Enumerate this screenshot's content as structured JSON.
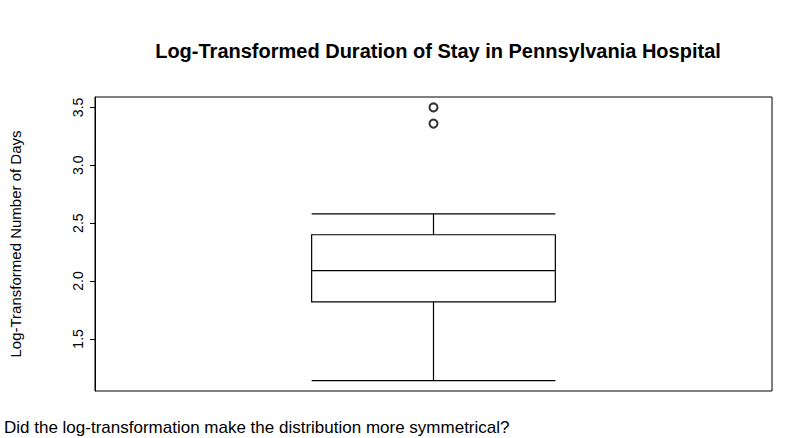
{
  "chart_data": {
    "type": "boxplot",
    "title": "Log-Transformed Duration of Stay in Pennsylvania Hospital",
    "ylabel": "Log-Transformed Number of Days",
    "caption": "Did the log-transformation make the distribution more symmetrical?",
    "boxes": [
      {
        "min": 1.14,
        "q1": 1.82,
        "median": 2.09,
        "q3": 2.4,
        "max": 2.58,
        "outliers": [
          3.36,
          3.5
        ]
      }
    ],
    "ylim": [
      1.05,
      3.59
    ],
    "yticks": [
      1.5,
      {
        "value": 2,
        "label": "2.0"
      },
      2.5,
      {
        "value": 3,
        "label": "3.0"
      },
      3.5
    ],
    "tick_labels": "y",
    "grid": false,
    "color": "#000000"
  }
}
